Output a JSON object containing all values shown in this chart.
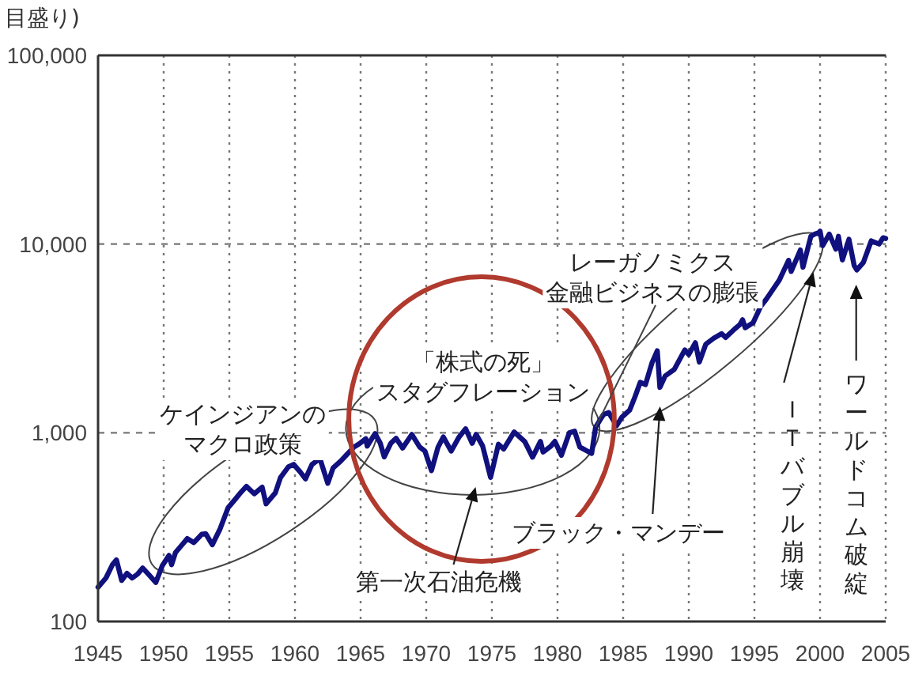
{
  "chart_data": {
    "type": "line",
    "ylabel": "目盛り)",
    "x": [
      1945.0,
      1945.6,
      1946.1,
      1946.4,
      1946.8,
      1947.2,
      1947.6,
      1948.0,
      1948.4,
      1948.9,
      1949.4,
      1949.9,
      1950.4,
      1950.6,
      1950.9,
      1951.4,
      1951.8,
      1952.3,
      1952.9,
      1953.2,
      1953.7,
      1954.3,
      1954.9,
      1955.4,
      1955.9,
      1956.3,
      1956.9,
      1957.5,
      1957.8,
      1958.5,
      1958.9,
      1959.5,
      1959.9,
      1960.4,
      1960.8,
      1961.3,
      1961.9,
      1962.5,
      1962.9,
      1963.5,
      1963.9,
      1964.5,
      1964.9,
      1965.4,
      1965.5,
      1966.1,
      1966.5,
      1966.8,
      1967.3,
      1967.7,
      1968.2,
      1968.9,
      1969.5,
      1969.9,
      1970.4,
      1970.9,
      1971.3,
      1971.9,
      1972.5,
      1973.0,
      1973.5,
      1973.8,
      1974.3,
      1974.9,
      1975.5,
      1975.9,
      1976.7,
      1977.5,
      1978.1,
      1978.7,
      1978.9,
      1979.5,
      1979.8,
      1980.3,
      1980.9,
      1981.3,
      1981.7,
      1982.6,
      1982.9,
      1983.5,
      1983.9,
      1984.5,
      1984.9,
      1985.5,
      1985.9,
      1986.3,
      1986.7,
      1987.2,
      1987.6,
      1987.8,
      1988.2,
      1988.9,
      1989.7,
      1990.0,
      1990.5,
      1990.8,
      1991.3,
      1991.9,
      1992.5,
      1992.8,
      1993.5,
      1993.9,
      1994.1,
      1994.3,
      1994.9,
      1995.5,
      1995.9,
      1996.3,
      1996.9,
      1997.6,
      1997.8,
      1998.5,
      1998.7,
      1999.3,
      1999.6,
      1999.9,
      2000.0,
      2000.2,
      2000.7,
      2001.2,
      2001.4,
      2001.7,
      2002.2,
      2002.6,
      2002.8,
      2003.3,
      2003.9,
      2004.5,
      2004.8,
      2005.0
    ],
    "series": [
      {
        "color": "#10107e",
        "values": [
          152,
          170,
          200,
          212,
          165,
          180,
          170,
          178,
          192,
          176,
          161,
          198,
          224,
          200,
          232,
          255,
          275,
          262,
          290,
          292,
          255,
          310,
          400,
          440,
          485,
          520,
          475,
          515,
          420,
          480,
          580,
          660,
          680,
          620,
          570,
          680,
          730,
          540,
          650,
          710,
          760,
          840,
          875,
          930,
          850,
          990,
          880,
          745,
          880,
          935,
          830,
          980,
          840,
          800,
          630,
          840,
          950,
          800,
          950,
          1050,
          880,
          980,
          850,
          580,
          870,
          820,
          1010,
          900,
          742,
          900,
          790,
          850,
          900,
          760,
          1000,
          1020,
          840,
          777,
          1070,
          1250,
          1280,
          1090,
          1210,
          1320,
          1550,
          1850,
          1800,
          2350,
          2720,
          1740,
          2000,
          2170,
          2750,
          2600,
          3000,
          2370,
          2950,
          3170,
          3350,
          3200,
          3550,
          3750,
          3970,
          3600,
          3830,
          4700,
          5100,
          5600,
          6450,
          8200,
          7160,
          9300,
          7540,
          11000,
          11300,
          11500,
          11700,
          9800,
          11300,
          9400,
          11000,
          8240,
          10600,
          7700,
          7290,
          8000,
          10400,
          10000,
          10800,
          10700
        ]
      }
    ],
    "xlim": [
      1945,
      2005
    ],
    "xticks": [
      1945,
      1950,
      1955,
      1960,
      1965,
      1970,
      1975,
      1980,
      1985,
      1990,
      1995,
      2000,
      2005
    ],
    "ylim": [
      100,
      100000
    ],
    "yticks": [
      100,
      {
        "value": 1000,
        "label": "1,000"
      },
      {
        "value": 10000,
        "label": "10,000"
      },
      {
        "value": 100000,
        "label": "100,000"
      }
    ],
    "log": true,
    "grid": true,
    "annotations": [
      "ケインジアンのマクロ政策",
      "「株式の死」スタグフレーション",
      {
        "text": "レーガノミクス金融ビジネスの膨張",
        "x": 1982.9,
        "y": 1070
      },
      "第一次石油危機",
      "ブラック・マンデー",
      "ＩＴバブル崩壊",
      "ワールドコム破綻"
    ]
  }
}
